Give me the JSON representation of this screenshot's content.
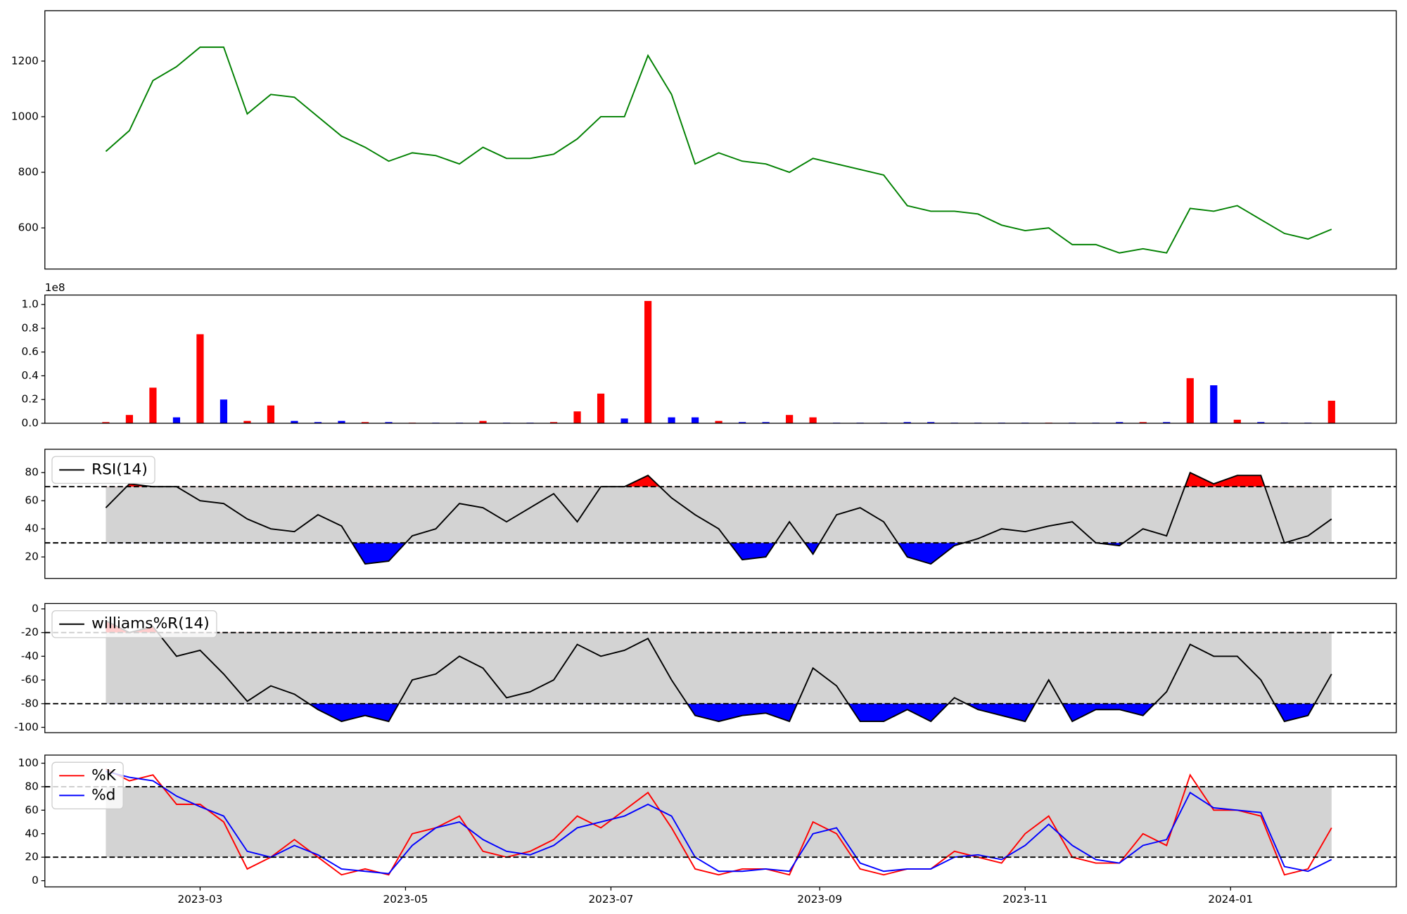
{
  "chart_data": [
    {
      "type": "line",
      "color": "green",
      "x": [
        0,
        7,
        14,
        21,
        28,
        35,
        42,
        49,
        56,
        63,
        70,
        77,
        84,
        91,
        98,
        105,
        112,
        119,
        126,
        133,
        140,
        147,
        154,
        161,
        168,
        175,
        182,
        189,
        196,
        203,
        210,
        217,
        224,
        231,
        238,
        245,
        252,
        259,
        266,
        273,
        280,
        287,
        294,
        301,
        308,
        315,
        322,
        329,
        336,
        343,
        350,
        357,
        364
      ],
      "values": [
        875,
        950,
        1130,
        1180,
        1250,
        1250,
        1010,
        1080,
        1070,
        1000,
        930,
        890,
        840,
        870,
        860,
        830,
        890,
        850,
        850,
        865,
        920,
        1000,
        1000,
        1220,
        1080,
        830,
        870,
        840,
        830,
        800,
        850,
        830,
        810,
        790,
        680,
        660,
        660,
        650,
        610,
        590,
        600,
        540,
        540,
        510,
        525,
        510,
        670,
        660,
        680,
        630,
        580,
        560,
        595
      ],
      "xlim": [
        -18.1,
        383.2
      ],
      "ylim": [
        452,
        1381
      ],
      "yticks": [
        600,
        800,
        1000,
        1200
      ]
    },
    {
      "type": "bar",
      "y_offset_label": "1e8",
      "x": [
        0,
        7,
        14,
        21,
        28,
        35,
        42,
        49,
        56,
        63,
        70,
        77,
        84,
        91,
        98,
        105,
        112,
        119,
        126,
        133,
        140,
        147,
        154,
        161,
        168,
        175,
        182,
        189,
        196,
        203,
        210,
        217,
        224,
        231,
        238,
        245,
        252,
        259,
        266,
        273,
        280,
        287,
        294,
        301,
        308,
        315,
        322,
        329,
        336,
        343,
        350,
        357,
        364
      ],
      "values": [
        0.01,
        0.07,
        0.3,
        0.05,
        0.75,
        0.2,
        0.02,
        0.15,
        0.02,
        0.01,
        0.02,
        0.01,
        0.01,
        0.005,
        0.005,
        0.005,
        0.02,
        0.005,
        0.005,
        0.01,
        0.1,
        0.25,
        0.04,
        1.03,
        0.05,
        0.05,
        0.02,
        0.01,
        0.01,
        0.07,
        0.05,
        0.005,
        0.005,
        0.005,
        0.01,
        0.01,
        0.005,
        0.005,
        0.005,
        0.005,
        0.005,
        0.005,
        0.005,
        0.01,
        0.01,
        0.01,
        0.38,
        0.32,
        0.03,
        0.01,
        0.005,
        0.005,
        0.19
      ],
      "colors": [
        "red",
        "red",
        "red",
        "blue",
        "red",
        "blue",
        "red",
        "red",
        "blue",
        "blue",
        "blue",
        "red",
        "blue",
        "red",
        "blue",
        "blue",
        "red",
        "blue",
        "blue",
        "red",
        "red",
        "red",
        "blue",
        "red",
        "blue",
        "blue",
        "red",
        "blue",
        "blue",
        "red",
        "red",
        "blue",
        "blue",
        "blue",
        "blue",
        "blue",
        "blue",
        "blue",
        "blue",
        "blue",
        "red",
        "blue",
        "blue",
        "blue",
        "red",
        "blue",
        "red",
        "blue",
        "red",
        "blue",
        "blue",
        "blue",
        "red"
      ],
      "xlim": [
        -18.1,
        383.2
      ],
      "ylim": [
        0,
        1.08
      ],
      "yticks": [
        {
          "value": 0,
          "label": "0.0"
        },
        {
          "value": 0.2,
          "label": "0.2"
        },
        {
          "value": 0.4,
          "label": "0.4"
        },
        {
          "value": 0.6,
          "label": "0.6"
        },
        {
          "value": 0.8,
          "label": "0.8"
        },
        {
          "value": 1,
          "label": "1.0"
        }
      ]
    },
    {
      "type": "line",
      "x": [
        0,
        7,
        14,
        21,
        28,
        35,
        42,
        49,
        56,
        63,
        70,
        77,
        84,
        91,
        98,
        105,
        112,
        119,
        126,
        133,
        140,
        147,
        154,
        161,
        168,
        175,
        182,
        189,
        196,
        203,
        210,
        217,
        224,
        231,
        238,
        245,
        252,
        259,
        266,
        273,
        280,
        287,
        294,
        301,
        308,
        315,
        322,
        329,
        336,
        343,
        350,
        357,
        364
      ],
      "series": [
        {
          "name": "RSI(14)",
          "color": "black",
          "values": [
            55,
            72,
            70,
            70,
            60,
            58,
            47,
            40,
            38,
            50,
            42,
            15,
            17,
            35,
            40,
            58,
            55,
            45,
            55,
            65,
            45,
            70,
            70,
            78,
            62,
            50,
            40,
            18,
            20,
            45,
            22,
            50,
            55,
            45,
            20,
            15,
            28,
            33,
            40,
            38,
            42,
            45,
            30,
            28,
            40,
            35,
            80,
            72,
            78,
            78,
            30,
            35,
            47
          ]
        }
      ],
      "hlines": [
        30,
        70
      ],
      "band_color": "lightgray",
      "overbought_color": "red",
      "oversold_color": "blue",
      "xlim": [
        -18.1,
        383.2
      ],
      "ylim": [
        4.7,
        96.6
      ],
      "yticks": [
        20,
        40,
        60,
        80
      ],
      "legend": "upper left"
    },
    {
      "type": "line",
      "x": [
        0,
        7,
        14,
        21,
        28,
        35,
        42,
        49,
        56,
        63,
        70,
        77,
        84,
        91,
        98,
        105,
        112,
        119,
        126,
        133,
        140,
        147,
        154,
        161,
        168,
        175,
        182,
        189,
        196,
        203,
        210,
        217,
        224,
        231,
        238,
        245,
        252,
        259,
        266,
        273,
        280,
        287,
        294,
        301,
        308,
        315,
        322,
        329,
        336,
        343,
        350,
        357,
        364
      ],
      "series": [
        {
          "name": "williams%R(14)",
          "color": "black",
          "values": [
            -10,
            -20,
            -15,
            -40,
            -35,
            -55,
            -78,
            -65,
            -72,
            -85,
            -95,
            -90,
            -95,
            -60,
            -55,
            -40,
            -50,
            -75,
            -70,
            -60,
            -30,
            -40,
            -35,
            -25,
            -60,
            -90,
            -95,
            -90,
            -88,
            -95,
            -50,
            -65,
            -95,
            -95,
            -85,
            -95,
            -75,
            -85,
            -90,
            -95,
            -60,
            -95,
            -85,
            -85,
            -90,
            -70,
            -30,
            -40,
            -40,
            -60,
            -95,
            -90,
            -55
          ]
        }
      ],
      "hlines": [
        -80,
        -20
      ],
      "band_color": "lightgray",
      "overbought_color": "red",
      "oversold_color": "blue",
      "xlim": [
        -18.1,
        383.2
      ],
      "ylim": [
        -104.5,
        4.5
      ],
      "yticks": [
        -100,
        -80,
        -60,
        -40,
        -20,
        0
      ],
      "legend": "upper left"
    },
    {
      "type": "line",
      "x": [
        0,
        7,
        14,
        21,
        28,
        35,
        42,
        49,
        56,
        63,
        70,
        77,
        84,
        91,
        98,
        105,
        112,
        119,
        126,
        133,
        140,
        147,
        154,
        161,
        168,
        175,
        182,
        189,
        196,
        203,
        210,
        217,
        224,
        231,
        238,
        245,
        252,
        259,
        266,
        273,
        280,
        287,
        294,
        301,
        308,
        315,
        322,
        329,
        336,
        343,
        350,
        357,
        364
      ],
      "series": [
        {
          "name": "%K",
          "color": "red",
          "values": [
            95,
            85,
            90,
            65,
            65,
            50,
            10,
            20,
            35,
            20,
            5,
            10,
            5,
            40,
            45,
            55,
            25,
            20,
            25,
            35,
            55,
            45,
            60,
            75,
            45,
            10,
            5,
            10,
            10,
            5,
            50,
            40,
            10,
            5,
            10,
            10,
            25,
            20,
            15,
            40,
            55,
            20,
            15,
            15,
            40,
            30,
            90,
            60,
            60,
            55,
            5,
            10,
            45
          ]
        },
        {
          "name": "%d",
          "color": "blue",
          "values": [
            93,
            88,
            85,
            72,
            63,
            55,
            25,
            20,
            30,
            22,
            10,
            8,
            6,
            30,
            45,
            50,
            35,
            25,
            22,
            30,
            45,
            50,
            55,
            65,
            55,
            20,
            8,
            8,
            10,
            8,
            40,
            45,
            15,
            8,
            10,
            10,
            20,
            22,
            18,
            30,
            48,
            30,
            18,
            15,
            30,
            35,
            75,
            62,
            60,
            58,
            12,
            8,
            18
          ]
        }
      ],
      "hlines": [
        20,
        80
      ],
      "band_color": "lightgray",
      "xlim": [
        -18.1,
        383.2
      ],
      "ylim": [
        -5.3,
        106.9
      ],
      "yticks": [
        0,
        20,
        40,
        60,
        80,
        100
      ],
      "xticks": [
        {
          "value": 28,
          "label": "2023-03"
        },
        {
          "value": 89,
          "label": "2023-05"
        },
        {
          "value": 150,
          "label": "2023-07"
        },
        {
          "value": 212,
          "label": "2023-09"
        },
        {
          "value": 273,
          "label": "2023-11"
        },
        {
          "value": 334,
          "label": "2024-01"
        }
      ],
      "legend": "upper left"
    }
  ]
}
